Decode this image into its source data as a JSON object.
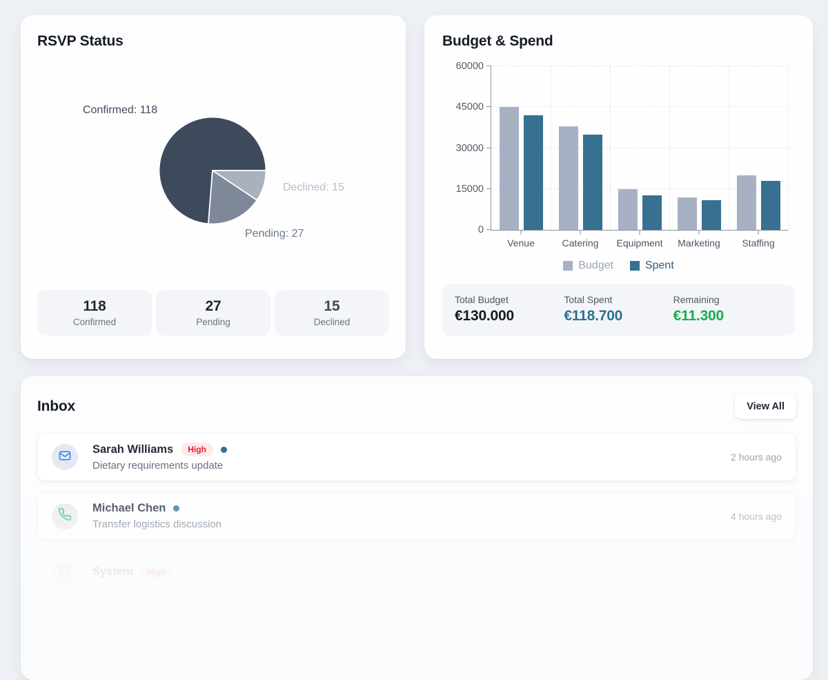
{
  "rsvp_card": {
    "title": "RSVP Status",
    "stats": [
      {
        "value": "118",
        "label": "Confirmed",
        "value_color": "#1f2733"
      },
      {
        "value": "27",
        "label": "Pending",
        "value_color": "#1f2733"
      },
      {
        "value": "15",
        "label": "Declined",
        "value_color": "#3d4856"
      }
    ]
  },
  "budget_card": {
    "title": "Budget & Spend",
    "totals": [
      {
        "label": "Total Budget",
        "value": "€130.000",
        "color": "#141b26"
      },
      {
        "label": "Total Spent",
        "value": "€118.700",
        "color": "#2e7191"
      },
      {
        "label": "Remaining",
        "value": "€11.300",
        "color": "#17ab4f"
      }
    ]
  },
  "inbox": {
    "title": "Inbox",
    "view_all_label": "View All",
    "unread_dot_color": "#2e7191",
    "priority_badge": {
      "bg": "#fdeaec",
      "text_color": "#e02433"
    },
    "messages": [
      {
        "sender": "Sarah Williams",
        "subject": "Dietary requirements update",
        "time": "2 hours ago",
        "priority": "High",
        "unread": true,
        "icon": "mail",
        "icon_color": "#3b82f6",
        "avatar_bg": "#e4e9f3"
      },
      {
        "sender": "Michael Chen",
        "subject": "Transfer logistics discussion",
        "time": "4 hours ago",
        "priority": "",
        "unread": true,
        "icon": "phone",
        "icon_color": "#34b873",
        "avatar_bg": "#e8eaee"
      },
      {
        "sender": "System",
        "subject": "",
        "time": "",
        "priority": "High",
        "unread": false,
        "icon": "bell",
        "icon_color": "#9aa3af",
        "avatar_bg": "#eceef2"
      }
    ]
  },
  "chart_data": [
    {
      "type": "pie",
      "title": "RSVP Status",
      "slices": [
        {
          "label": "Confirmed",
          "value": 118,
          "color": "#3d4a5c",
          "label_text": "Confirmed: 118",
          "label_color": "#3f4a5b"
        },
        {
          "label": "Declined",
          "value": 15,
          "color": "#a9b1bf",
          "label_text": "Declined: 15",
          "label_color": "#b6bdc8"
        },
        {
          "label": "Pending",
          "value": 27,
          "color": "#7e8898",
          "label_text": "Pending: 27",
          "label_color": "#6e7888"
        }
      ],
      "total": 160,
      "legend_position": "labels-outside"
    },
    {
      "type": "bar",
      "title": "Budget & Spend",
      "categories": [
        "Venue",
        "Catering",
        "Equipment",
        "Marketing",
        "Staffing"
      ],
      "series": [
        {
          "name": "Budget",
          "color": "#a7b1c3",
          "legend_text_color": "#9aa5b5",
          "values": [
            45000,
            38000,
            15000,
            12000,
            20000
          ]
        },
        {
          "name": "Spent",
          "color": "#377090",
          "legend_text_color": "#2e5d7c",
          "values": [
            42000,
            35000,
            12700,
            11000,
            18000
          ]
        }
      ],
      "xlabel": "",
      "ylabel": "",
      "ylim": [
        0,
        60000
      ],
      "y_ticks": [
        0,
        15000,
        30000,
        45000,
        60000
      ],
      "grid": "dashed",
      "legend_position": "bottom"
    }
  ]
}
